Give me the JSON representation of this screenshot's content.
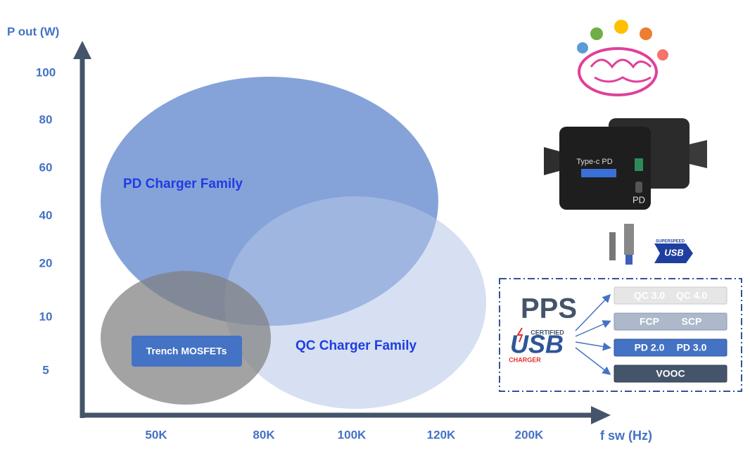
{
  "axes": {
    "y_label": "P out (W)",
    "x_label": "f sw (Hz)",
    "y_ticks": [
      "100",
      "80",
      "60",
      "40",
      "20",
      "10",
      "5"
    ],
    "x_ticks": [
      "50K",
      "80K",
      "100K",
      "120K",
      "200K"
    ]
  },
  "regions": {
    "pd": "PD Charger Family",
    "qc": "QC Charger Family",
    "mosfet": "Trench MOSFETs"
  },
  "protocol_box": {
    "pps": "PPS",
    "certified": "CERTIFIED",
    "usb": "USB",
    "charger": "CHARGER",
    "protocols": [
      [
        "QC 3.0",
        "QC 4.0"
      ],
      [
        "FCP",
        "SCP"
      ],
      [
        "PD 2.0",
        "PD 3.0"
      ],
      [
        "VOOC"
      ]
    ]
  },
  "images": {
    "charger_model": "Type-c PD",
    "charger_badge": "PD",
    "superspeed_top": "SUPERSPEED",
    "superspeed_usb": "USB"
  }
}
